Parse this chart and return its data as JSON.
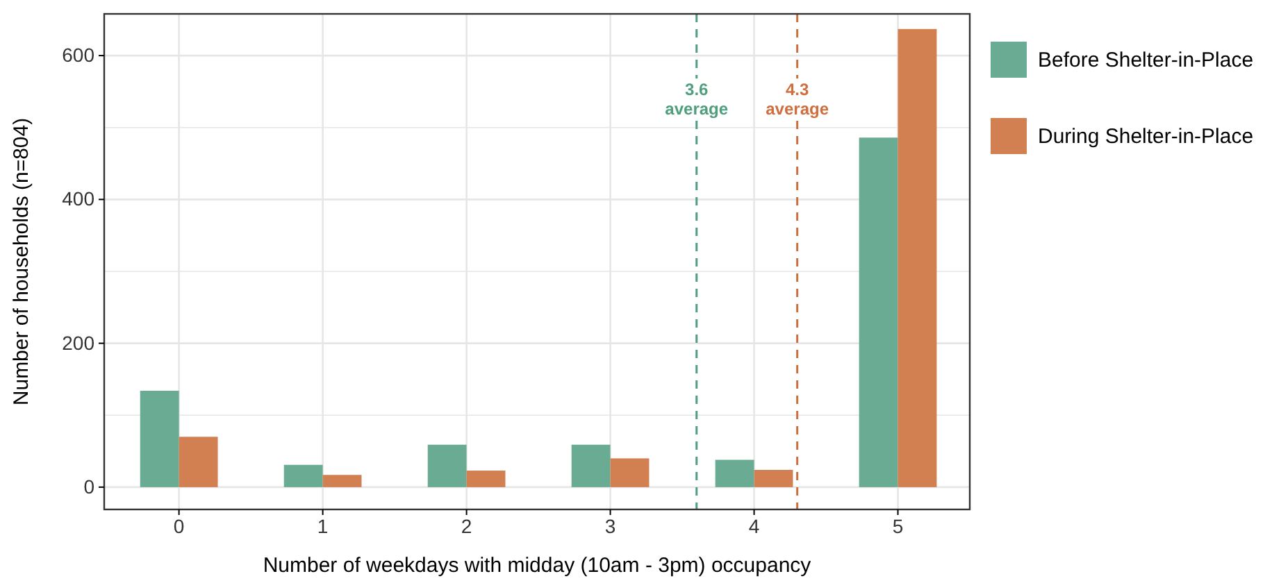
{
  "chart_data": {
    "type": "bar",
    "x": [
      0,
      1,
      2,
      3,
      4,
      5
    ],
    "series": [
      {
        "name": "Before Shelter-in-Place",
        "color": "#6aab93",
        "values": [
          134,
          31,
          59,
          59,
          38,
          486
        ]
      },
      {
        "name": "During Shelter-in-Place",
        "color": "#d27f52",
        "values": [
          70,
          17,
          23,
          40,
          24,
          637
        ]
      }
    ],
    "xlabel": "Number of weekdays with midday (10am - 3pm) occupancy",
    "ylabel": "Number of households (n=804)",
    "xlim": [
      -0.52,
      5.5
    ],
    "xticks": [
      0,
      1,
      2,
      3,
      4,
      5
    ],
    "ylim": [
      -31,
      658
    ],
    "yticks": [
      0,
      {
        "value": 100,
        "label": null
      },
      200,
      {
        "value": 300,
        "label": null
      },
      400,
      {
        "value": 500,
        "label": null
      },
      600
    ],
    "ref_lines": [
      {
        "axis": "x",
        "value": 3.6,
        "label": "3.6 average",
        "color": "#4f9e7e",
        "line_style": "dashed"
      },
      {
        "axis": "x",
        "value": 4.3,
        "label": "4.3 average",
        "color": "#cf6e3f",
        "line_style": "dashed"
      }
    ],
    "grid": true,
    "legend": "right"
  }
}
